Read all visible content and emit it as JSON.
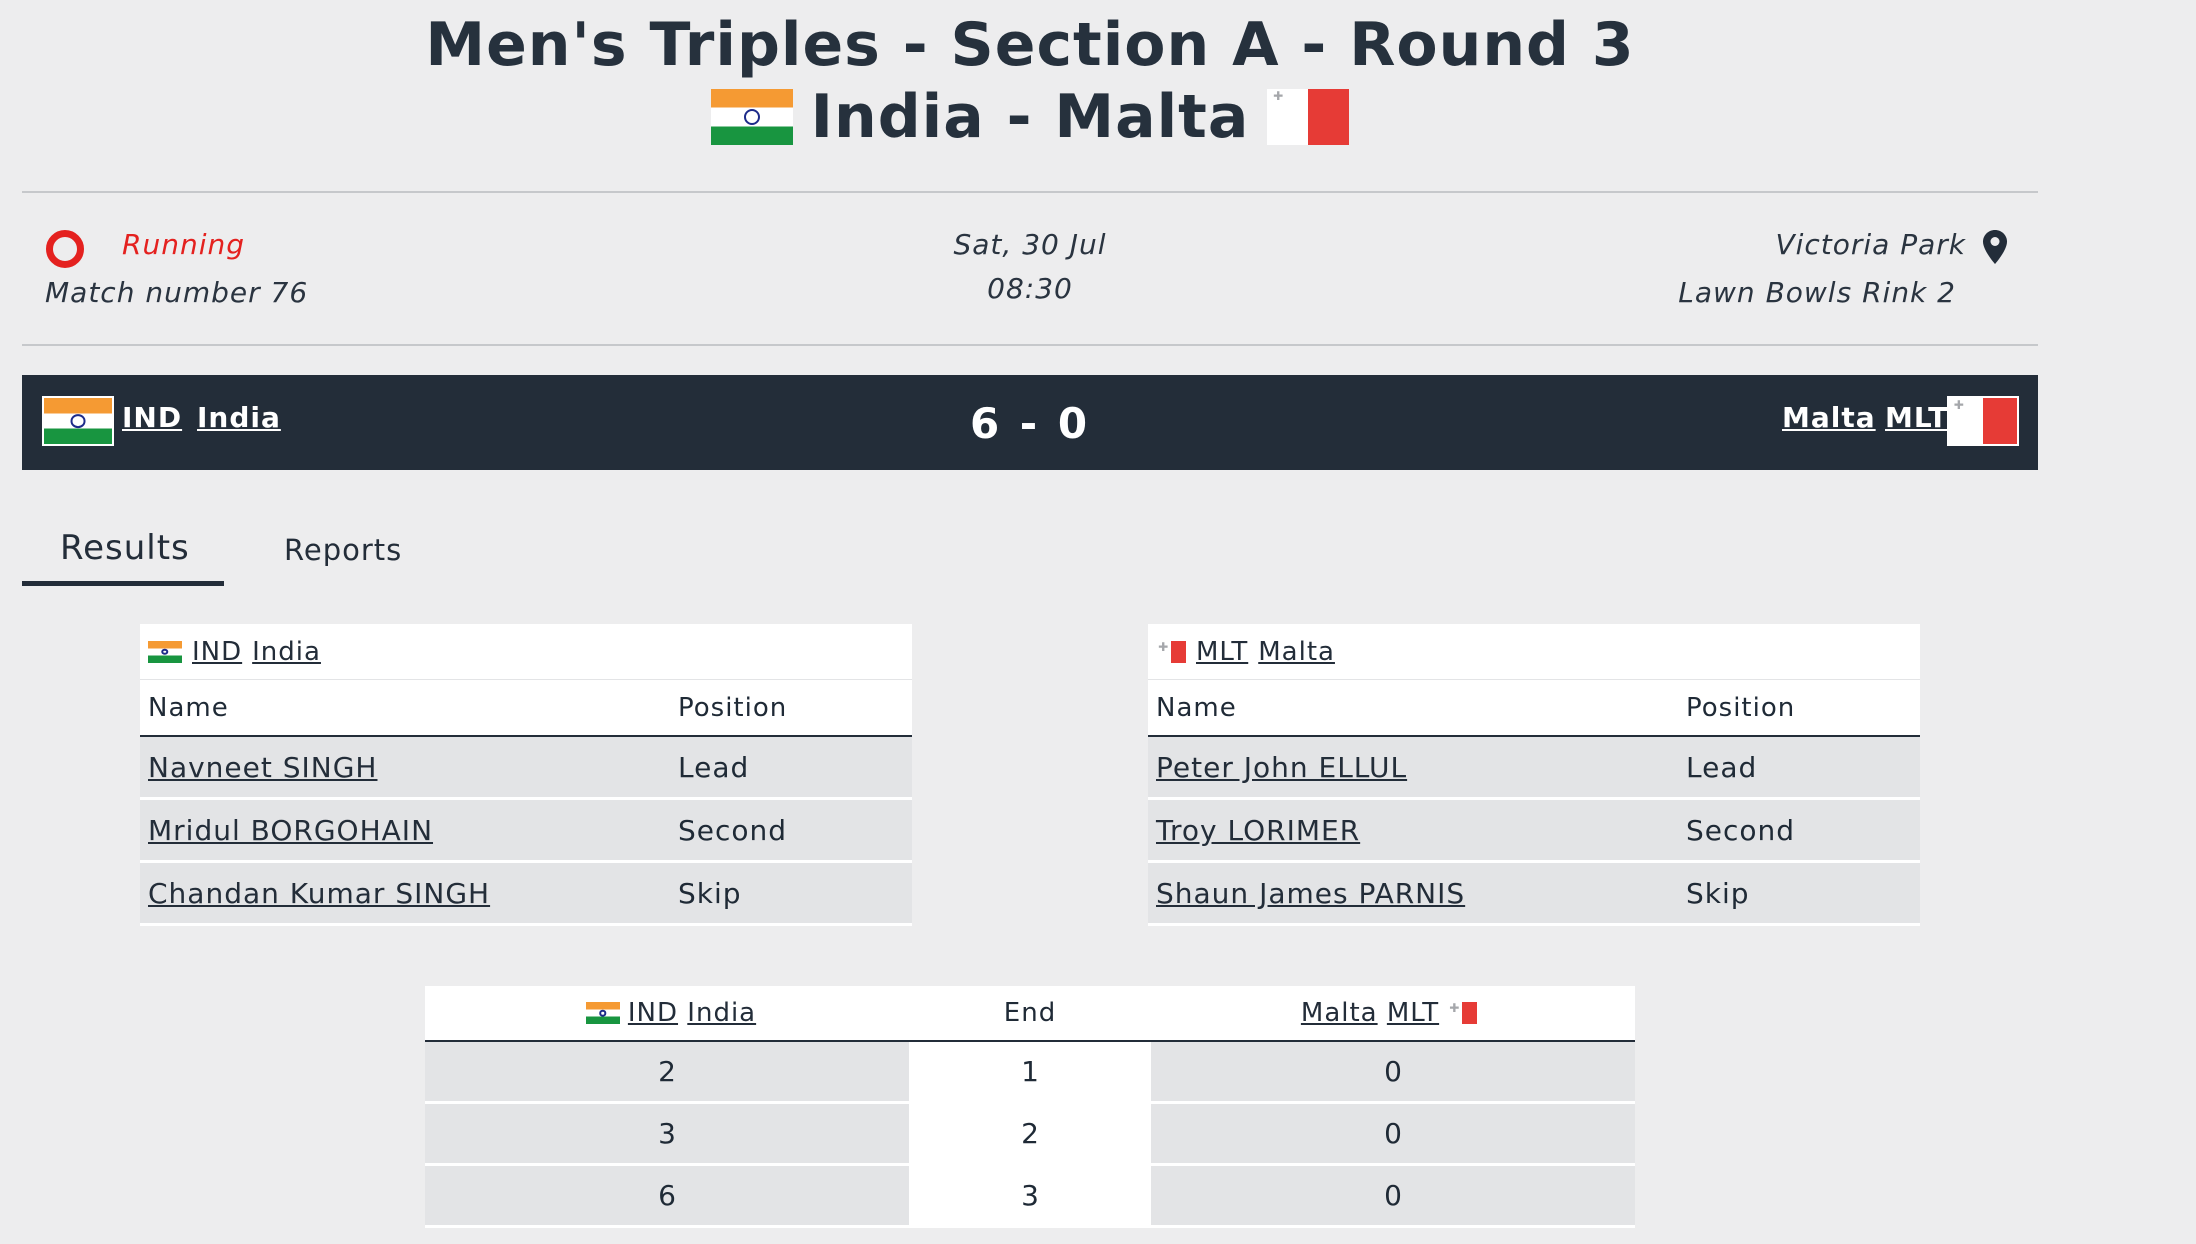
{
  "header": {
    "title": "Men's Triples - Section A - Round 3",
    "teams_line": "India - Malta"
  },
  "match": {
    "status": "Running",
    "match_number": "Match number 76",
    "date": "Sat, 30 Jul",
    "time": "08:30",
    "venue": "Victoria Park",
    "rink": "Lawn Bowls Rink 2"
  },
  "scorebar": {
    "home_code": "IND",
    "home_name": "India",
    "score": "6 - 0",
    "away_name": "Malta",
    "away_code": "MLT"
  },
  "tabs": [
    {
      "label": "Results",
      "active": true
    },
    {
      "label": "Reports",
      "active": false
    }
  ],
  "rosters": {
    "home": {
      "code": "IND",
      "name": "India",
      "col_name": "Name",
      "col_position": "Position",
      "players": [
        {
          "name": "Navneet SINGH",
          "position": "Lead"
        },
        {
          "name": "Mridul BORGOHAIN",
          "position": "Second"
        },
        {
          "name": "Chandan Kumar SINGH",
          "position": "Skip"
        }
      ]
    },
    "away": {
      "code": "MLT",
      "name": "Malta",
      "col_name": "Name",
      "col_position": "Position",
      "players": [
        {
          "name": "Peter John ELLUL",
          "position": "Lead"
        },
        {
          "name": "Troy LORIMER",
          "position": "Second"
        },
        {
          "name": "Shaun James PARNIS",
          "position": "Skip"
        }
      ]
    }
  },
  "ends_table": {
    "home_code": "IND",
    "home_name": "India",
    "end_label": "End",
    "away_name": "Malta",
    "away_code": "MLT",
    "rows": [
      {
        "home": "2",
        "end": "1",
        "away": "0"
      },
      {
        "home": "3",
        "end": "2",
        "away": "0"
      },
      {
        "home": "6",
        "end": "3",
        "away": "0"
      }
    ]
  },
  "colors": {
    "background": "#ededee",
    "dark": "#232d39",
    "status_red": "#e4211f",
    "row_gray": "#e3e4e6"
  },
  "icons": {
    "status": "running-ring-icon",
    "venue": "map-pin-icon"
  }
}
